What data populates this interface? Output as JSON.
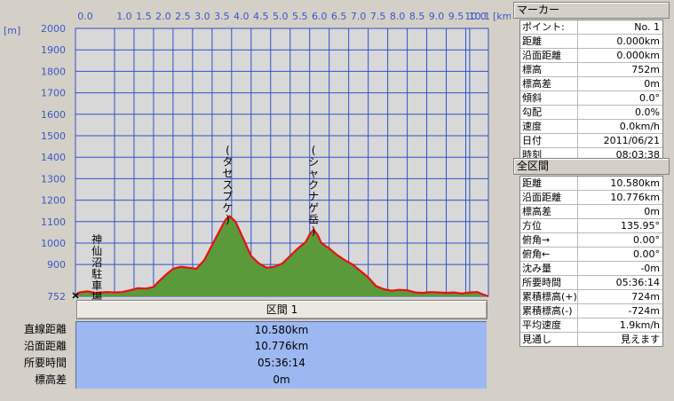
{
  "chart_data": {
    "type": "area",
    "x_unit": "[km]",
    "y_unit": "[m]",
    "x_ticks": [
      "0.0",
      "1.0",
      "1.5",
      "2.0",
      "2.5",
      "3.0",
      "3.5",
      "4.0",
      "4.5",
      "5.0",
      "5.5",
      "6.0",
      "6.5",
      "7.0",
      "7.5",
      "8.0",
      "8.5",
      "9.0",
      "9.5",
      "10.0",
      "10.1"
    ],
    "y_ticks": [
      "2000",
      "1900",
      "1800",
      "1700",
      "1600",
      "1500",
      "1400",
      "1300",
      "1200",
      "1100",
      "1000",
      "900",
      "752"
    ],
    "xlim": [
      0,
      10.58
    ],
    "ylim": [
      752,
      2000
    ],
    "grid": true,
    "fill_color": "#5b9a3a",
    "line_color": "#e81010",
    "plot_bg": "#d8d8d8",
    "grid_color": "#3050c8",
    "points": [
      [
        0.0,
        752
      ],
      [
        0.1,
        770
      ],
      [
        0.3,
        775
      ],
      [
        0.5,
        768
      ],
      [
        0.8,
        772
      ],
      [
        1.0,
        770
      ],
      [
        1.2,
        772
      ],
      [
        1.4,
        780
      ],
      [
        1.6,
        790
      ],
      [
        1.8,
        788
      ],
      [
        2.0,
        795
      ],
      [
        2.1,
        815
      ],
      [
        2.3,
        850
      ],
      [
        2.5,
        880
      ],
      [
        2.7,
        890
      ],
      [
        2.9,
        885
      ],
      [
        3.1,
        880
      ],
      [
        3.3,
        920
      ],
      [
        3.5,
        990
      ],
      [
        3.7,
        1060
      ],
      [
        3.85,
        1110
      ],
      [
        3.95,
        1125
      ],
      [
        4.1,
        1100
      ],
      [
        4.3,
        1020
      ],
      [
        4.5,
        940
      ],
      [
        4.7,
        905
      ],
      [
        4.9,
        885
      ],
      [
        5.1,
        890
      ],
      [
        5.3,
        905
      ],
      [
        5.5,
        940
      ],
      [
        5.7,
        975
      ],
      [
        5.9,
        1005
      ],
      [
        6.0,
        1040
      ],
      [
        6.1,
        1062
      ],
      [
        6.2,
        1040
      ],
      [
        6.3,
        1000
      ],
      [
        6.5,
        975
      ],
      [
        6.7,
        945
      ],
      [
        6.9,
        920
      ],
      [
        7.1,
        900
      ],
      [
        7.3,
        870
      ],
      [
        7.5,
        840
      ],
      [
        7.7,
        800
      ],
      [
        7.9,
        785
      ],
      [
        8.1,
        778
      ],
      [
        8.3,
        782
      ],
      [
        8.5,
        780
      ],
      [
        8.7,
        770
      ],
      [
        8.9,
        768
      ],
      [
        9.1,
        772
      ],
      [
        9.3,
        770
      ],
      [
        9.5,
        768
      ],
      [
        9.7,
        770
      ],
      [
        9.9,
        765
      ],
      [
        10.1,
        770
      ],
      [
        10.3,
        772
      ],
      [
        10.45,
        760
      ],
      [
        10.58,
        752
      ]
    ],
    "annotations": [
      {
        "text": "神仙沼駐車場",
        "x": 0.55,
        "y": 1000
      },
      {
        "text": "(タセスブケ)",
        "x": 3.9,
        "y": 1415
      },
      {
        "text": "(シャクナゲ岳)",
        "x": 6.1,
        "y": 1415
      }
    ]
  },
  "section": {
    "tab_label": "区間 1"
  },
  "summary": [
    {
      "label": "直線距離",
      "value": "10.580km"
    },
    {
      "label": "沿面距離",
      "value": "10.776km"
    },
    {
      "label": "所要時間",
      "value": "05:36:14"
    },
    {
      "label": "標高差",
      "value": "0m"
    }
  ],
  "marker_panel": {
    "title": "マーカー",
    "rows": [
      {
        "k": "ポイント:",
        "v": "No. 1"
      },
      {
        "k": "距離",
        "v": "0.000km"
      },
      {
        "k": "沿面距離",
        "v": "0.000km"
      },
      {
        "k": "標高",
        "v": "752m"
      },
      {
        "k": "標高差",
        "v": "0m"
      },
      {
        "k": "傾斜",
        "v": "0.0°"
      },
      {
        "k": "勾配",
        "v": "0.0%"
      },
      {
        "k": "速度",
        "v": "0.0km/h"
      },
      {
        "k": "日付",
        "v": "2011/06/21"
      },
      {
        "k": "時刻",
        "v": "08:03:38"
      }
    ]
  },
  "section_panel": {
    "title": "全区間",
    "rows": [
      {
        "k": "距離",
        "v": "10.580km"
      },
      {
        "k": "沿面距離",
        "v": "10.776km"
      },
      {
        "k": "標高差",
        "v": "0m"
      },
      {
        "k": "方位",
        "v": "135.95°"
      },
      {
        "k": "俯角→",
        "v": "0.00°"
      },
      {
        "k": "俯角←",
        "v": "0.00°"
      },
      {
        "k": "沈み量",
        "v": "-0m"
      },
      {
        "k": "所要時間",
        "v": "05:36:14"
      },
      {
        "k": "累積標高(+)",
        "v": "724m"
      },
      {
        "k": "累積標高(-)",
        "v": "-724m"
      },
      {
        "k": "平均速度",
        "v": "1.9km/h"
      },
      {
        "k": "見通し",
        "v": "見えます"
      }
    ]
  }
}
